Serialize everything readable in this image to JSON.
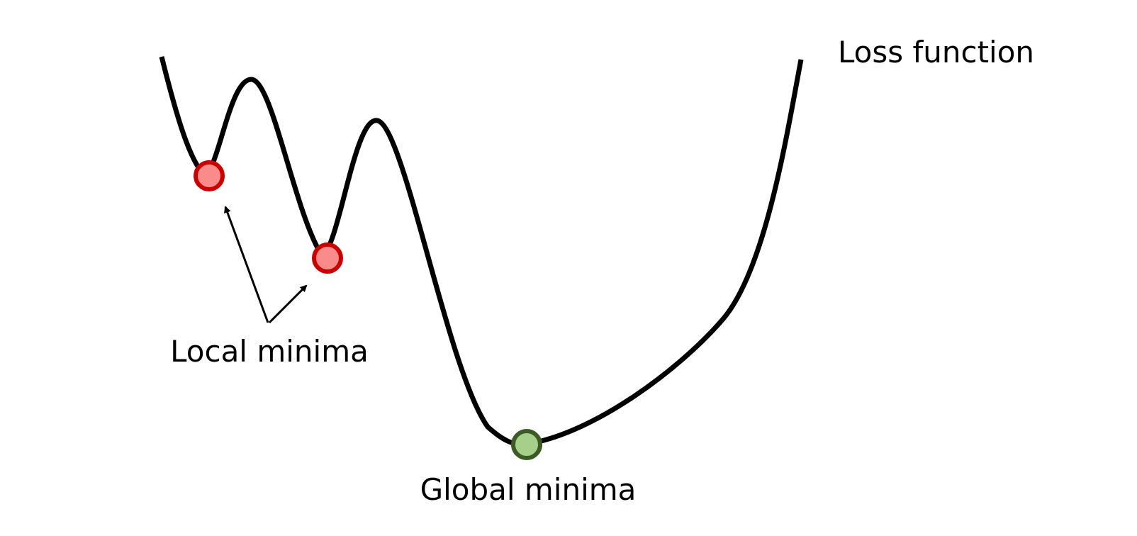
{
  "labels": {
    "curve_title": "Loss function",
    "local_minima": "Local minima",
    "global_minima": "Global minima"
  },
  "colors": {
    "curve": "#000000",
    "local_fill": "#f98b8b",
    "local_stroke": "#c80000",
    "global_fill": "#a6cf8a",
    "global_stroke": "#3b5a24",
    "arrow": "#000000"
  }
}
